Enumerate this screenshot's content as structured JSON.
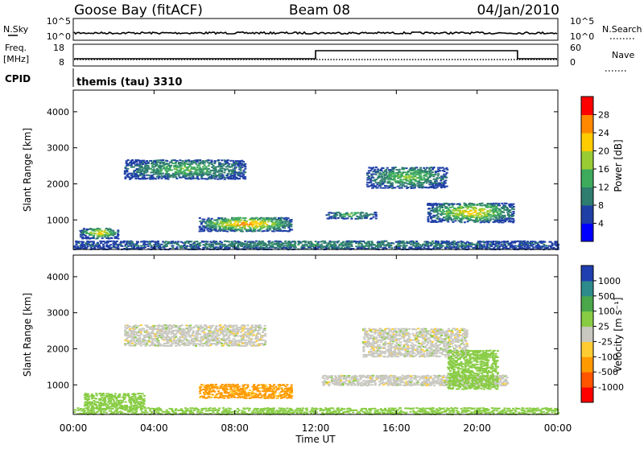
{
  "header": {
    "station": "Goose Bay (fitACF)",
    "beam": "Beam 08",
    "date": "04/Jan/2010"
  },
  "top_panels": {
    "nsky_label": "N.Sky",
    "nsky_ticks": [
      "10^5",
      "10^0"
    ],
    "nsearch_label": "N.Search",
    "nsearch_ticks": [
      "10^5",
      "10^0"
    ],
    "freq_label": "Freq.",
    "freq_unit": "[MHz]",
    "freq_ticks": [
      "18",
      "8"
    ],
    "nave_label": "Nave",
    "nave_ticks": [
      "60",
      "0"
    ],
    "cpid_label": "CPID",
    "cpid_value": "themis (tau) 3310",
    "freq_step_hours": [
      12.0,
      22.0
    ]
  },
  "time_axis": {
    "label": "Time UT",
    "ticks": [
      "00:00",
      "04:00",
      "08:00",
      "12:00",
      "16:00",
      "20:00",
      "00:00"
    ],
    "range_hours": [
      0,
      24
    ]
  },
  "chart_data": [
    {
      "type": "heatmap",
      "name": "power",
      "ylabel": "Slant Range [km]",
      "yticks": [
        "1000",
        "2000",
        "3000",
        "4000"
      ],
      "ylim": [
        180,
        4600
      ],
      "colorbar_label": "Power [dB]",
      "colorbar_ticks": [
        "4",
        "8",
        "12",
        "16",
        "20",
        "24",
        "28"
      ],
      "colors": [
        "#0000ff",
        "#1f3fa6",
        "#2e7d6f",
        "#3daa5c",
        "#99cc33",
        "#ffcc00",
        "#ff8800",
        "#ff0000"
      ],
      "regions": [
        {
          "t": [
            0.3,
            2.2
          ],
          "r": [
            500,
            800
          ],
          "power": 22
        },
        {
          "t": [
            2.5,
            8.5
          ],
          "r": [
            2150,
            2700
          ],
          "power": 14
        },
        {
          "t": [
            6.2,
            10.8
          ],
          "r": [
            700,
            1100
          ],
          "power": 26
        },
        {
          "t": [
            12.5,
            15.0
          ],
          "r": [
            1050,
            1250
          ],
          "power": 14
        },
        {
          "t": [
            14.5,
            18.5
          ],
          "r": [
            1900,
            2500
          ],
          "power": 16
        },
        {
          "t": [
            17.5,
            21.8
          ],
          "r": [
            950,
            1500
          ],
          "power": 22
        },
        {
          "t": [
            0.0,
            24.0
          ],
          "r": [
            200,
            450
          ],
          "power": 10
        }
      ]
    },
    {
      "type": "heatmap",
      "name": "velocity",
      "ylabel": "Slant Range [km]",
      "yticks": [
        "1000",
        "2000",
        "3000",
        "4000"
      ],
      "ylim": [
        180,
        4600
      ],
      "colorbar_label": "Velocity [m s⁻¹]",
      "colorbar_ticks": [
        "1000",
        "500",
        "100",
        "25",
        "-25",
        "-100",
        "-500",
        "-1000"
      ],
      "colors": [
        "#1f3fb0",
        "#2e8b8b",
        "#4aa84a",
        "#88cc44",
        "#c8c8c0",
        "#ffcc33",
        "#ff9900",
        "#ff5500",
        "#ff0000"
      ],
      "regions": [
        {
          "t": [
            0.5,
            3.5
          ],
          "r": [
            350,
            800
          ],
          "velocity": 60
        },
        {
          "t": [
            2.5,
            9.5
          ],
          "r": [
            2100,
            2700
          ],
          "velocity": 0
        },
        {
          "t": [
            6.2,
            10.8
          ],
          "r": [
            650,
            1050
          ],
          "velocity": -120
        },
        {
          "t": [
            12.3,
            21.5
          ],
          "r": [
            1000,
            1300
          ],
          "velocity": 0
        },
        {
          "t": [
            14.3,
            19.5
          ],
          "r": [
            1800,
            2600
          ],
          "velocity": 0
        },
        {
          "t": [
            18.5,
            21.0
          ],
          "r": [
            900,
            2000
          ],
          "velocity": 60
        },
        {
          "t": [
            0.0,
            24.0
          ],
          "r": [
            200,
            400
          ],
          "velocity": 60
        }
      ]
    }
  ]
}
